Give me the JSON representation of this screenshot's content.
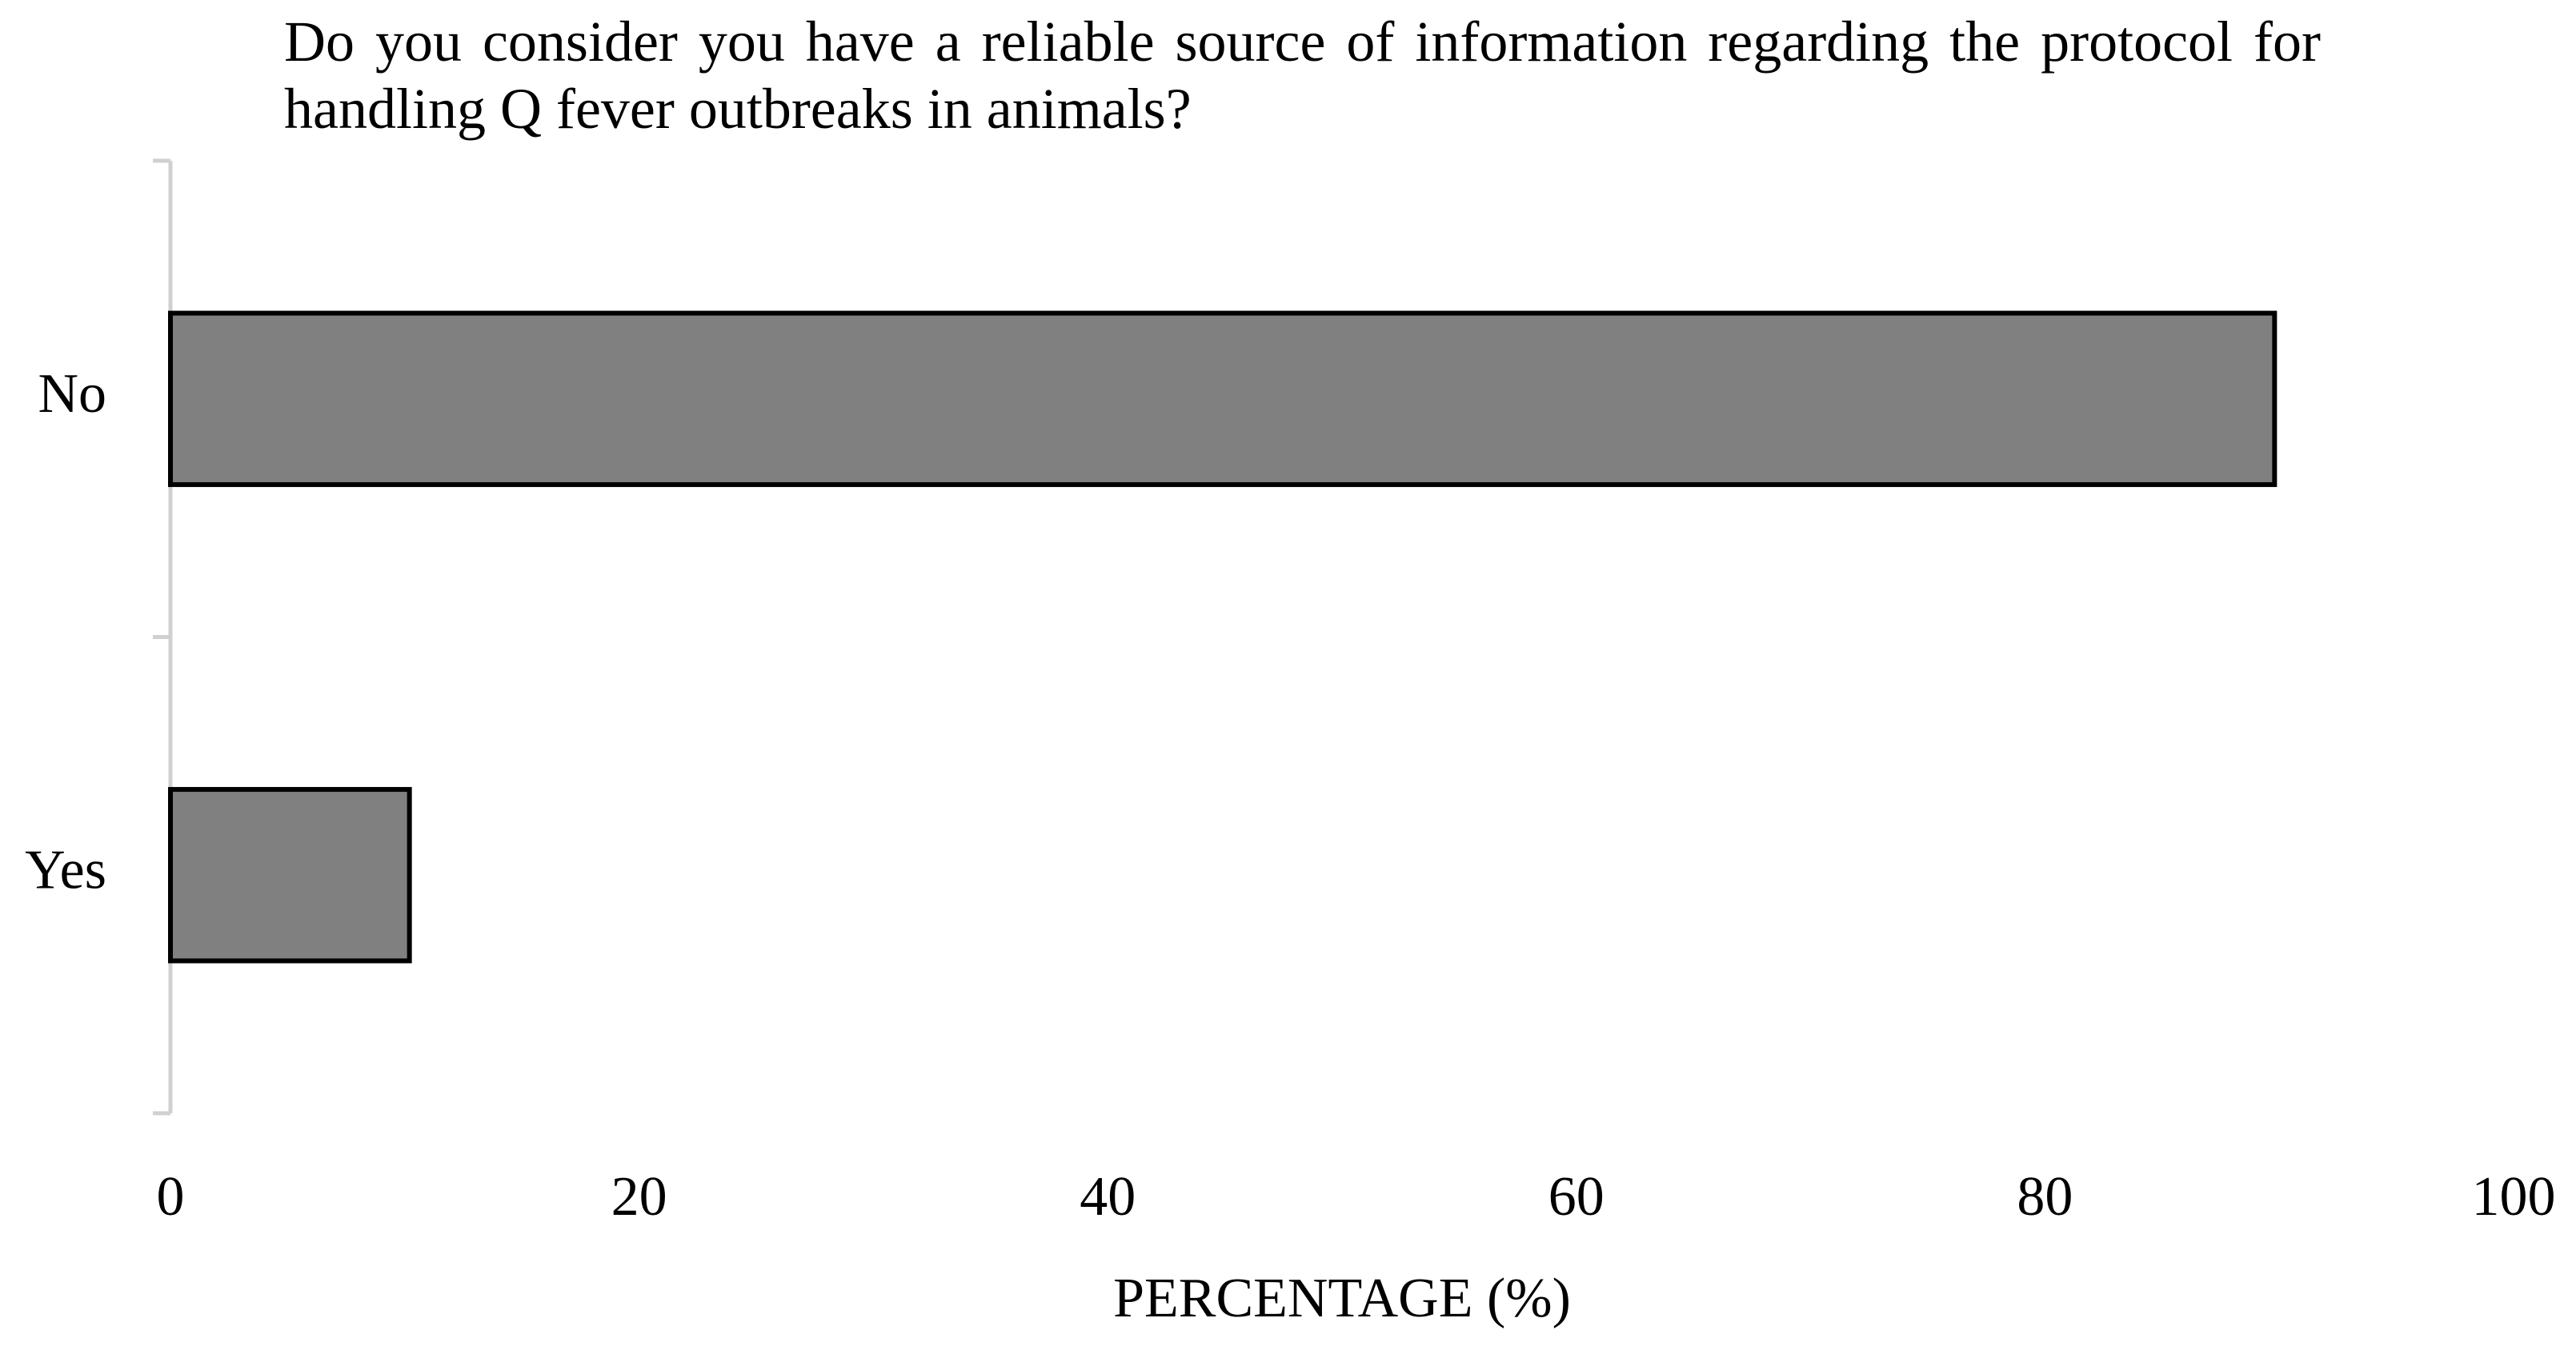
{
  "chart_data": {
    "type": "bar",
    "orientation": "horizontal",
    "title": "Do you consider you have a reliable source of information regarding the protocol for handling Q fever outbreaks in animals?",
    "categories": [
      "No",
      "Yes"
    ],
    "values": [
      89.8,
      10.2
    ],
    "color": "#808080",
    "xlabel": "PERCENTAGE (%)",
    "xlim": [
      0,
      100
    ],
    "xticks": [
      0,
      20,
      40,
      60,
      80,
      100
    ],
    "grid": false
  }
}
